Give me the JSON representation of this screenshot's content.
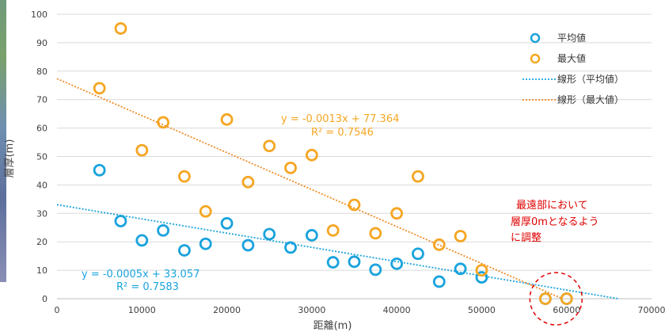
{
  "chart_data": {
    "type": "scatter",
    "xlabel": "距離(m)",
    "ylabel": "層厚(m)",
    "xlim": [
      0,
      70000
    ],
    "ylim": [
      0,
      100
    ],
    "x_ticks": [
      0,
      10000,
      20000,
      30000,
      40000,
      50000,
      60000,
      70000
    ],
    "y_ticks": [
      0,
      10,
      20,
      30,
      40,
      50,
      60,
      70,
      80,
      90,
      100
    ],
    "legend_position": "top-right",
    "series": [
      {
        "name": "平均値",
        "color": "#1aa3dd",
        "x": [
          5000,
          7500,
          10000,
          12500,
          15000,
          17500,
          20000,
          22500,
          25000,
          27500,
          30000,
          32500,
          35000,
          37500,
          40000,
          42500,
          45000,
          47500,
          50000,
          57500,
          60000
        ],
        "y": [
          45.2,
          27.3,
          20.5,
          24.0,
          17.0,
          19.3,
          26.5,
          18.8,
          22.7,
          18.0,
          22.3,
          12.8,
          13.0,
          10.2,
          12.3,
          15.8,
          6.0,
          10.5,
          7.5,
          0,
          0
        ]
      },
      {
        "name": "最大値",
        "color": "#f5a623",
        "x": [
          5000,
          7500,
          10000,
          12500,
          15000,
          17500,
          20000,
          22500,
          25000,
          27500,
          30000,
          32500,
          35000,
          37500,
          40000,
          42500,
          45000,
          47500,
          50000,
          57500,
          60000
        ],
        "y": [
          74.0,
          95.0,
          52.2,
          62.0,
          43.0,
          30.7,
          63.0,
          41.0,
          53.7,
          46.0,
          50.5,
          24.0,
          33.0,
          23.0,
          30.0,
          43.0,
          19.0,
          22.0,
          10.0,
          0,
          0
        ]
      }
    ],
    "trendlines": [
      {
        "name": "線形（平均値）",
        "color": "#1aa3dd",
        "slope": -0.0005,
        "intercept": 33.057,
        "equation": "y = -0.0005x + 33.057",
        "r2": "R² = 0.7583"
      },
      {
        "name": "線形（最大値）",
        "color": "#f08a24",
        "slope": -0.0013,
        "intercept": 77.364,
        "equation": "y = -0.0013x + 77.364",
        "r2": "R² = 0.7546"
      }
    ],
    "annotation": {
      "lines": [
        "最遠部において",
        "層厚0mとなるよう",
        "に調整"
      ],
      "color": "#e00000",
      "circle_center": [
        58750,
        0
      ]
    }
  }
}
